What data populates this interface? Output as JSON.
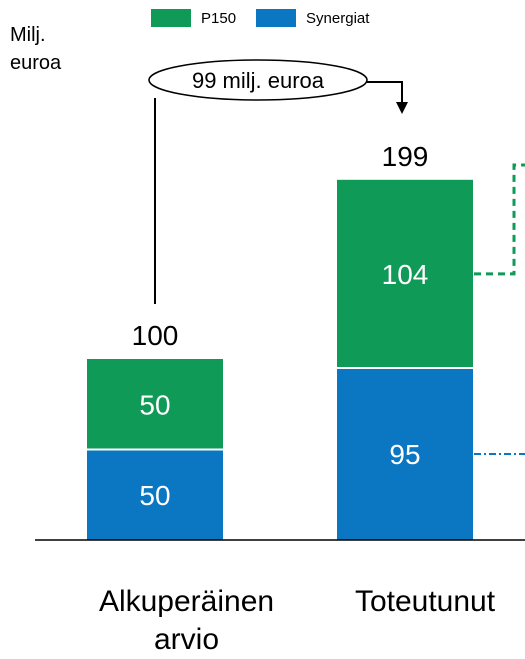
{
  "unit_label": [
    "Milj.",
    "euroa"
  ],
  "colors": {
    "p150": "#0f9a57",
    "synergies": "#0b77c2",
    "outline": "#000000"
  },
  "legend": [
    {
      "label": "P150",
      "color": "#0f9a57"
    },
    {
      "label": "Synergiat",
      "color": "#0b77c2"
    }
  ],
  "callout": "99 milj. euroa",
  "chart_data": {
    "type": "bar",
    "stacked": true,
    "categories": [
      "Alkuperäinen\narvio",
      "Toteutunut"
    ],
    "series": [
      {
        "name": "Synergiat",
        "values": [
          50,
          95
        ]
      },
      {
        "name": "P150",
        "values": [
          50,
          104
        ]
      }
    ],
    "totals": [
      100,
      199
    ],
    "segment_labels": [
      [
        "50",
        "50"
      ],
      [
        "95",
        "104"
      ]
    ],
    "total_labels": [
      "100",
      "199"
    ],
    "difference_label": "99 milj. euroa",
    "ylim": [
      0,
      220
    ],
    "grid": false,
    "legend_position": "top"
  }
}
